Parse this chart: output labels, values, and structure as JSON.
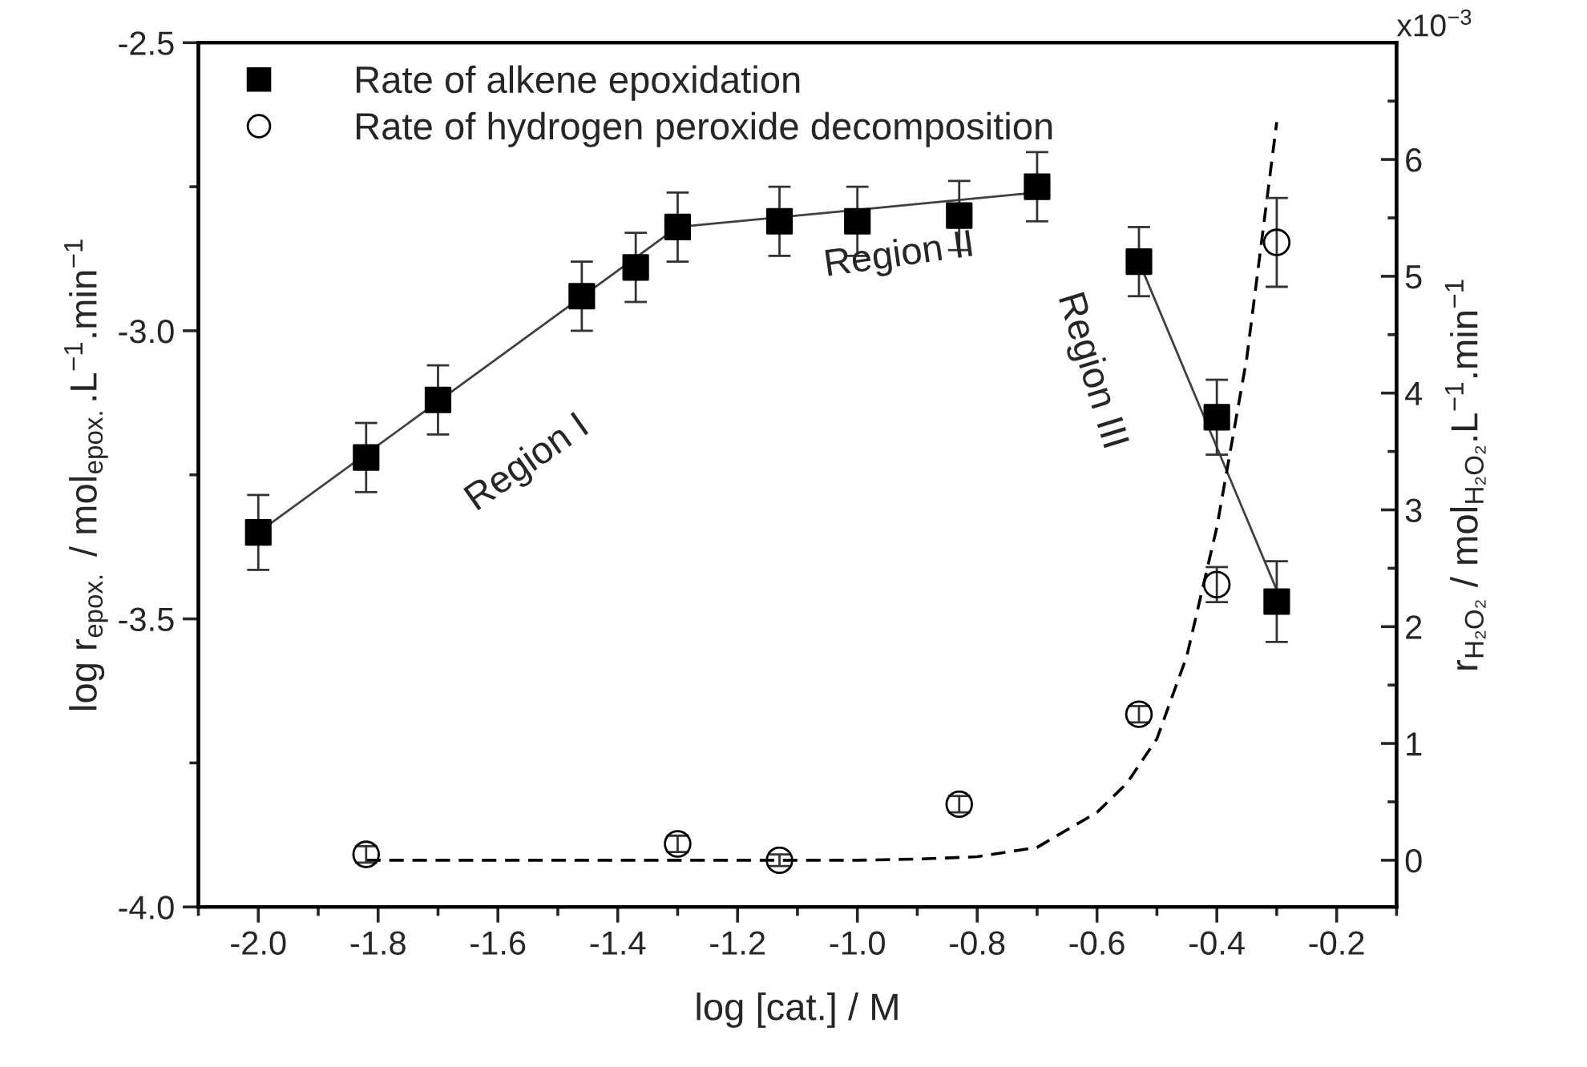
{
  "chart_data": {
    "type": "scatter",
    "xlabel": "log [cat.] / M",
    "ylabel": "log r$_{epox.}$ / mol$_{epox.}$.L$^{−1}$.min$^{−1}$",
    "y2label": "r$_{H₂O₂}$ / mol$_{H₂O₂}$.L$^{−1}$.min$^{−1}$",
    "xlim": [
      -2.1,
      -0.1
    ],
    "xticks": [
      {
        "value": -2.1,
        "label": null
      },
      {
        "value": -2.0,
        "label": "-2.0"
      },
      {
        "value": -1.9,
        "label": null
      },
      -1.8,
      {
        "value": -1.7,
        "label": null
      },
      -1.6,
      {
        "value": -1.5,
        "label": null
      },
      -1.4,
      {
        "value": -1.3,
        "label": null
      },
      -1.2,
      {
        "value": -1.1,
        "label": null
      },
      {
        "value": -1.0,
        "label": "-1.0"
      },
      {
        "value": -0.9,
        "label": null
      },
      -0.8,
      {
        "value": -0.7,
        "label": null
      },
      -0.6,
      {
        "value": -0.5,
        "label": null
      },
      -0.4,
      {
        "value": -0.3,
        "label": null
      },
      -0.2,
      {
        "value": -0.1,
        "label": null
      }
    ],
    "ylim": [
      -4.0,
      -2.5
    ],
    "yticks": [
      {
        "value": -4.0,
        "label": "-4.0"
      },
      {
        "value": -3.75,
        "label": null
      },
      -3.5,
      {
        "value": -3.25,
        "label": null
      },
      {
        "value": -3.0,
        "label": "-3.0"
      },
      {
        "value": -2.75,
        "label": null
      },
      -2.5
    ],
    "y2lim": [
      -0.4,
      7.0
    ],
    "y2ticks": [
      0,
      {
        "value": 0.5,
        "label": null
      },
      1,
      {
        "value": 1.5,
        "label": null
      },
      2,
      {
        "value": 2.5,
        "label": null
      },
      3,
      {
        "value": 3.5,
        "label": null
      },
      4,
      {
        "value": 4.5,
        "label": null
      },
      5,
      {
        "value": 5.5,
        "label": null
      },
      6,
      {
        "value": 6.5,
        "label": null
      }
    ],
    "legend": "top left",
    "grid": false,
    "series": [
      {
        "name": "Rate of alkene epoxidation",
        "marker": "square",
        "color": "#000000",
        "x": [
          -2.0,
          -1.82,
          -1.7,
          -1.46,
          -1.37,
          -1.3,
          -1.13,
          -1.0,
          -0.83,
          -0.7,
          -0.53,
          -0.4,
          -0.3
        ],
        "values": [
          -3.35,
          -3.22,
          -3.12,
          -2.94,
          -2.89,
          -2.82,
          -2.81,
          -2.81,
          -2.8,
          -2.75,
          -2.88,
          -3.15,
          -3.47
        ],
        "errors": [
          0.065,
          0.06,
          0.06,
          0.06,
          0.06,
          0.06,
          0.06,
          0.06,
          0.06,
          0.06,
          0.06,
          0.065,
          0.07
        ]
      },
      {
        "name": "Rate of hydrogen peroxide decomposition",
        "marker": "circle",
        "color": "#000000",
        "axis": "y2",
        "x": [
          -1.82,
          -1.3,
          -1.13,
          -0.83,
          -0.53,
          -0.4,
          -0.3
        ],
        "values": [
          0.05,
          0.14,
          0.0,
          0.48,
          1.25,
          2.36,
          5.29
        ],
        "errors": [
          0.07,
          0.07,
          0.05,
          0.07,
          0.07,
          0.15,
          0.38
        ]
      },
      {
        "type": "line",
        "line_style": "solid",
        "color": "#404040",
        "x": [
          -2.0,
          -1.3
        ],
        "values": [
          -3.35,
          -2.82
        ]
      },
      {
        "type": "line",
        "line_style": "solid",
        "color": "#404040",
        "x": [
          -1.3,
          -0.7
        ],
        "values": [
          -2.82,
          -2.76
        ]
      },
      {
        "type": "line",
        "line_style": "solid",
        "color": "#404040",
        "x": [
          -0.53,
          -0.3
        ],
        "values": [
          -2.88,
          -3.45
        ]
      },
      {
        "type": "line",
        "line_style": "dashed",
        "color": "#000000",
        "axis": "y2",
        "x": [
          -1.82,
          -1.0,
          -0.9,
          -0.8,
          -0.7,
          -0.6,
          -0.55,
          -0.5,
          -0.45,
          -0.4,
          -0.35,
          -0.3
        ],
        "values": [
          0.0,
          0.0,
          0.01,
          0.03,
          0.11,
          0.41,
          0.66,
          1.04,
          1.75,
          2.85,
          4.3,
          6.32
        ]
      }
    ],
    "annotations": [
      "Region I",
      "Region II",
      "Region III",
      "x10$^{−3}$"
    ]
  }
}
